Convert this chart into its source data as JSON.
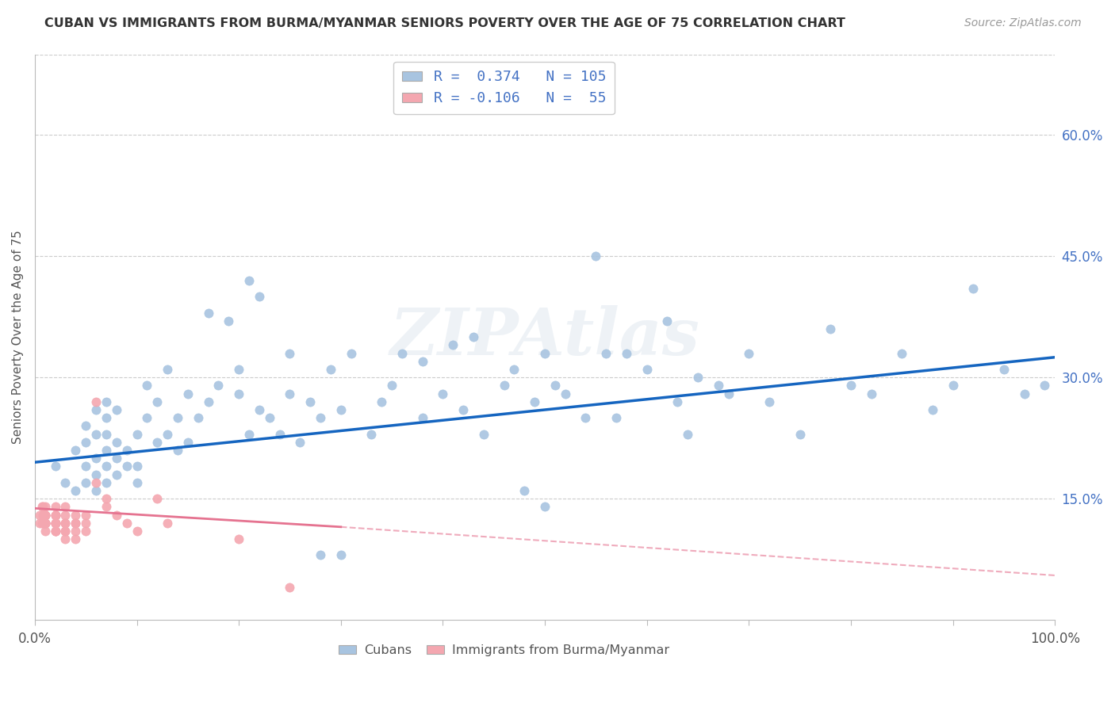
{
  "title": "CUBAN VS IMMIGRANTS FROM BURMA/MYANMAR SENIORS POVERTY OVER THE AGE OF 75 CORRELATION CHART",
  "source": "Source: ZipAtlas.com",
  "ylabel": "Seniors Poverty Over the Age of 75",
  "xlim": [
    0,
    1.0
  ],
  "ylim": [
    0.0,
    0.7
  ],
  "yticks_right": [
    0.15,
    0.3,
    0.45,
    0.6
  ],
  "ytick_labels_right": [
    "15.0%",
    "30.0%",
    "45.0%",
    "60.0%"
  ],
  "R_cuban": 0.374,
  "N_cuban": 105,
  "R_burma": -0.106,
  "N_burma": 55,
  "cuban_color": "#a8c4e0",
  "burma_color": "#f4a7b0",
  "trendline_cuban_color": "#1565c0",
  "trendline_burma_color": "#e57390",
  "watermark": "ZIPAtlas",
  "legend_label_cuban": "Cubans",
  "legend_label_burma": "Immigrants from Burma/Myanmar",
  "cuban_x": [
    0.02,
    0.03,
    0.04,
    0.04,
    0.05,
    0.05,
    0.05,
    0.05,
    0.06,
    0.06,
    0.06,
    0.06,
    0.06,
    0.07,
    0.07,
    0.07,
    0.07,
    0.07,
    0.07,
    0.08,
    0.08,
    0.08,
    0.08,
    0.09,
    0.09,
    0.1,
    0.1,
    0.1,
    0.11,
    0.11,
    0.12,
    0.12,
    0.13,
    0.13,
    0.14,
    0.14,
    0.15,
    0.15,
    0.16,
    0.17,
    0.18,
    0.19,
    0.2,
    0.2,
    0.21,
    0.22,
    0.23,
    0.24,
    0.25,
    0.25,
    0.26,
    0.27,
    0.28,
    0.29,
    0.3,
    0.31,
    0.33,
    0.34,
    0.35,
    0.36,
    0.38,
    0.38,
    0.4,
    0.41,
    0.42,
    0.43,
    0.44,
    0.46,
    0.47,
    0.48,
    0.49,
    0.5,
    0.5,
    0.51,
    0.52,
    0.54,
    0.55,
    0.56,
    0.57,
    0.58,
    0.6,
    0.62,
    0.63,
    0.64,
    0.65,
    0.67,
    0.68,
    0.7,
    0.72,
    0.75,
    0.78,
    0.8,
    0.82,
    0.85,
    0.88,
    0.9,
    0.92,
    0.95,
    0.97,
    0.99,
    0.17,
    0.21,
    0.22,
    0.28,
    0.3
  ],
  "cuban_y": [
    0.19,
    0.17,
    0.16,
    0.21,
    0.17,
    0.19,
    0.22,
    0.24,
    0.16,
    0.18,
    0.2,
    0.23,
    0.26,
    0.17,
    0.19,
    0.21,
    0.23,
    0.25,
    0.27,
    0.18,
    0.2,
    0.22,
    0.26,
    0.19,
    0.21,
    0.17,
    0.19,
    0.23,
    0.25,
    0.29,
    0.22,
    0.27,
    0.23,
    0.31,
    0.21,
    0.25,
    0.22,
    0.28,
    0.25,
    0.27,
    0.29,
    0.37,
    0.28,
    0.31,
    0.23,
    0.26,
    0.25,
    0.23,
    0.28,
    0.33,
    0.22,
    0.27,
    0.25,
    0.31,
    0.26,
    0.33,
    0.23,
    0.27,
    0.29,
    0.33,
    0.25,
    0.32,
    0.28,
    0.34,
    0.26,
    0.35,
    0.23,
    0.29,
    0.31,
    0.16,
    0.27,
    0.33,
    0.14,
    0.29,
    0.28,
    0.25,
    0.45,
    0.33,
    0.25,
    0.33,
    0.31,
    0.37,
    0.27,
    0.23,
    0.3,
    0.29,
    0.28,
    0.33,
    0.27,
    0.23,
    0.36,
    0.29,
    0.28,
    0.33,
    0.26,
    0.29,
    0.41,
    0.31,
    0.28,
    0.29,
    0.38,
    0.42,
    0.4,
    0.08,
    0.08
  ],
  "burma_x": [
    0.005,
    0.005,
    0.007,
    0.007,
    0.008,
    0.008,
    0.009,
    0.009,
    0.01,
    0.01,
    0.01,
    0.01,
    0.01,
    0.01,
    0.01,
    0.01,
    0.01,
    0.02,
    0.02,
    0.02,
    0.02,
    0.02,
    0.02,
    0.02,
    0.02,
    0.02,
    0.02,
    0.02,
    0.02,
    0.03,
    0.03,
    0.03,
    0.03,
    0.03,
    0.03,
    0.03,
    0.04,
    0.04,
    0.04,
    0.04,
    0.04,
    0.05,
    0.05,
    0.05,
    0.06,
    0.06,
    0.07,
    0.07,
    0.08,
    0.09,
    0.1,
    0.12,
    0.13,
    0.2,
    0.25
  ],
  "burma_y": [
    0.12,
    0.13,
    0.14,
    0.12,
    0.13,
    0.14,
    0.12,
    0.13,
    0.12,
    0.13,
    0.14,
    0.13,
    0.12,
    0.11,
    0.12,
    0.13,
    0.12,
    0.12,
    0.13,
    0.14,
    0.13,
    0.12,
    0.11,
    0.12,
    0.13,
    0.12,
    0.11,
    0.12,
    0.11,
    0.14,
    0.13,
    0.12,
    0.11,
    0.12,
    0.11,
    0.1,
    0.13,
    0.12,
    0.11,
    0.1,
    0.12,
    0.13,
    0.12,
    0.11,
    0.27,
    0.17,
    0.15,
    0.14,
    0.13,
    0.12,
    0.11,
    0.15,
    0.12,
    0.1,
    0.04
  ],
  "trendline_cuban_x0": 0.0,
  "trendline_cuban_y0": 0.195,
  "trendline_cuban_x1": 1.0,
  "trendline_cuban_y1": 0.325,
  "trendline_burma_x0": 0.0,
  "trendline_burma_y0": 0.138,
  "trendline_burma_x1": 0.3,
  "trendline_burma_y1": 0.115,
  "trendline_burma_dash_x0": 0.3,
  "trendline_burma_dash_y0": 0.115,
  "trendline_burma_dash_x1": 1.0,
  "trendline_burma_dash_y1": 0.055
}
